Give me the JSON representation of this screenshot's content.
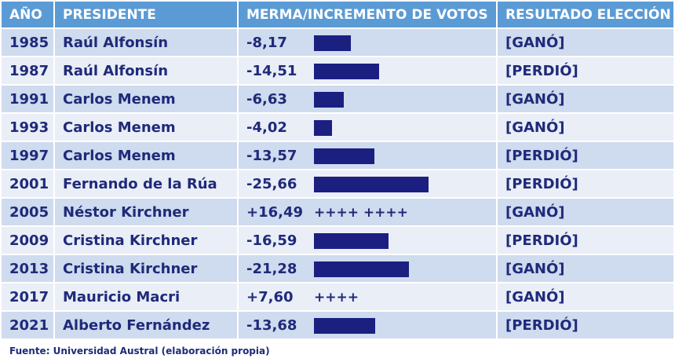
{
  "colors": {
    "header": "#5b9bd5",
    "bar": "#1a1f80",
    "text": "#1f2a7a",
    "row_dark": "#cfdbee",
    "row_light": "#e9eef7"
  },
  "chart_data": {
    "type": "table",
    "columns": [
      "AÑO",
      "PRESIDENTE",
      "MERMA/INCREMENTO DE VOTOS",
      "RESULTADO ELECCIÓN"
    ],
    "rows": [
      {
        "year": "1985",
        "president": "Raúl Alfonsín",
        "change": "-8,17",
        "value": -8.17,
        "marker": "",
        "result": "[GANÓ]"
      },
      {
        "year": "1987",
        "president": "Raúl Alfonsín",
        "change": "-14,51",
        "value": -14.51,
        "marker": "",
        "result": "[PERDIÓ]"
      },
      {
        "year": "1991",
        "president": "Carlos Menem",
        "change": "-6,63",
        "value": -6.63,
        "marker": "",
        "result": "[GANÓ]"
      },
      {
        "year": "1993",
        "president": "Carlos Menem",
        "change": "-4,02",
        "value": -4.02,
        "marker": "",
        "result": "[GANÓ]"
      },
      {
        "year": "1997",
        "president": "Carlos Menem",
        "change": "-13,57",
        "value": -13.57,
        "marker": "",
        "result": "[PERDIÓ]"
      },
      {
        "year": "2001",
        "president": "Fernando de la Rúa",
        "change": "-25,66",
        "value": -25.66,
        "marker": "",
        "result": "[PERDIÓ]"
      },
      {
        "year": "2005",
        "president": "Néstor Kirchner",
        "change": "+16,49",
        "value": 16.49,
        "marker": "++++ ++++",
        "result": "[GANÓ]"
      },
      {
        "year": "2009",
        "president": "Cristina Kirchner",
        "change": "-16,59",
        "value": -16.59,
        "marker": "",
        "result": "[PERDIÓ]"
      },
      {
        "year": "2013",
        "president": "Cristina Kirchner",
        "change": "-21,28",
        "value": -21.28,
        "marker": "",
        "result": "[GANÓ]"
      },
      {
        "year": "2017",
        "president": "Mauricio Macri",
        "change": "+7,60",
        "value": 7.6,
        "marker": "++++",
        "result": "[GANÓ]"
      },
      {
        "year": "2021",
        "president": "Alberto Fernández",
        "change": "-13,68",
        "value": -13.68,
        "marker": "",
        "result": "[PERDIÓ]"
      }
    ]
  },
  "source": "Fuente: Universidad Austral (elaboración propia)"
}
